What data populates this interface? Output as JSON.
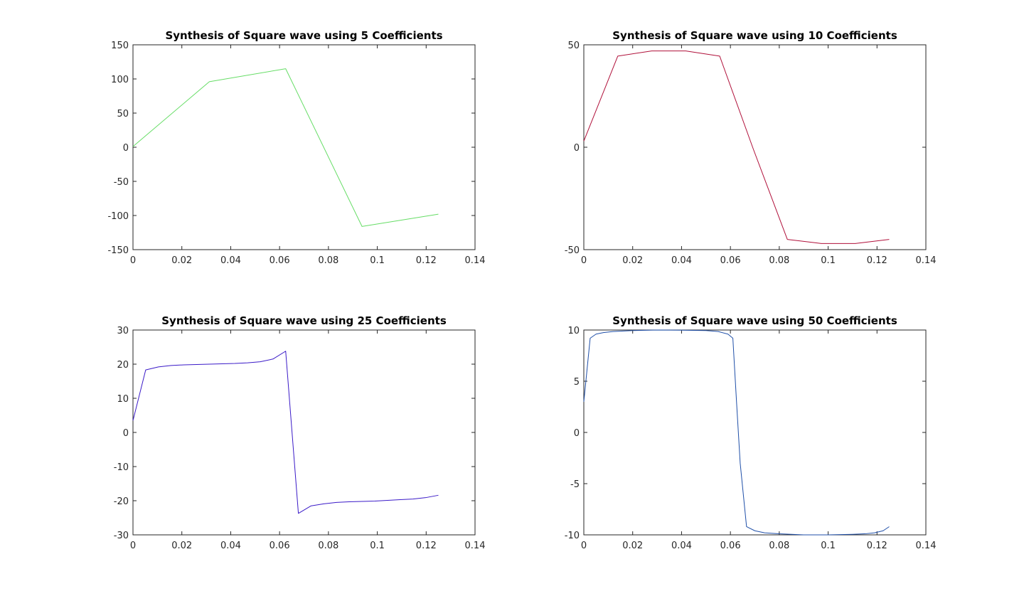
{
  "chart_data": [
    {
      "type": "line",
      "title": "Synthesis of Square wave using 5 Coefficients",
      "xlabel": "",
      "ylabel": "",
      "xlim": [
        0,
        0.14
      ],
      "ylim": [
        -150,
        150
      ],
      "xticks": [
        0,
        0.02,
        0.04,
        0.06,
        0.08,
        0.1,
        0.12,
        0.14
      ],
      "xtick_labels": [
        "0",
        "0.02",
        "0.04",
        "0.06",
        "0.08",
        "0.1",
        "0.12",
        "0.14"
      ],
      "yticks": [
        -150,
        -100,
        -50,
        0,
        50,
        100,
        150
      ],
      "ytick_labels": [
        "-150",
        "-100",
        "-50",
        "0",
        "50",
        "100",
        "150"
      ],
      "grid": false,
      "series": [
        {
          "color": "#66dd66",
          "x": [
            0,
            0.03125,
            0.0625,
            0.09375,
            0.125
          ],
          "y": [
            1,
            96,
            115,
            -116,
            -98
          ]
        }
      ]
    },
    {
      "type": "line",
      "title": "Synthesis of Square wave using 10 Coefficients",
      "xlabel": "",
      "ylabel": "",
      "xlim": [
        0,
        0.14
      ],
      "ylim": [
        -50,
        50
      ],
      "xticks": [
        0,
        0.02,
        0.04,
        0.06,
        0.08,
        0.1,
        0.12,
        0.14
      ],
      "xtick_labels": [
        "0",
        "0.02",
        "0.04",
        "0.06",
        "0.08",
        "0.1",
        "0.12",
        "0.14"
      ],
      "yticks": [
        -50,
        0,
        50
      ],
      "ytick_labels": [
        "-50",
        "0",
        "50"
      ],
      "grid": false,
      "series": [
        {
          "color": "#b0103a",
          "x": [
            0,
            0.0139,
            0.0278,
            0.0417,
            0.0556,
            0.0694,
            0.0833,
            0.0972,
            0.1111,
            0.125
          ],
          "y": [
            3,
            44.5,
            47,
            47,
            44.5,
            -1,
            -45,
            -47,
            -47,
            -45
          ]
        }
      ]
    },
    {
      "type": "line",
      "title": "Synthesis of Square wave using 25 Coefficients",
      "xlabel": "",
      "ylabel": "",
      "xlim": [
        0,
        0.14
      ],
      "ylim": [
        -30,
        30
      ],
      "xticks": [
        0,
        0.02,
        0.04,
        0.06,
        0.08,
        0.1,
        0.12,
        0.14
      ],
      "xtick_labels": [
        "0",
        "0.02",
        "0.04",
        "0.06",
        "0.08",
        "0.1",
        "0.12",
        "0.14"
      ],
      "yticks": [
        -30,
        -20,
        -10,
        0,
        10,
        20,
        30
      ],
      "ytick_labels": [
        "-30",
        "-20",
        "-10",
        "0",
        "10",
        "20",
        "30"
      ],
      "grid": false,
      "series": [
        {
          "color": "#3a1ac8",
          "x": [
            0,
            0.0052,
            0.0104,
            0.0156,
            0.0208,
            0.026,
            0.0313,
            0.0365,
            0.0417,
            0.0469,
            0.0521,
            0.0573,
            0.0625,
            0.0677,
            0.0729,
            0.0781,
            0.0833,
            0.0885,
            0.0938,
            0.099,
            0.1042,
            0.1094,
            0.1146,
            0.1198,
            0.125
          ],
          "y": [
            3.5,
            18.3,
            19.2,
            19.6,
            19.8,
            19.9,
            20.0,
            20.1,
            20.2,
            20.4,
            20.7,
            21.5,
            23.8,
            -23.7,
            -21.5,
            -20.9,
            -20.5,
            -20.3,
            -20.2,
            -20.1,
            -19.9,
            -19.7,
            -19.5,
            -19.1,
            -18.4
          ]
        }
      ]
    },
    {
      "type": "line",
      "title": "Synthesis of Square wave using 50 Coefficients",
      "xlabel": "",
      "ylabel": "",
      "xlim": [
        0,
        0.14
      ],
      "ylim": [
        -10,
        10
      ],
      "xticks": [
        0,
        0.02,
        0.04,
        0.06,
        0.08,
        0.1,
        0.12,
        0.14
      ],
      "xtick_labels": [
        "0",
        "0.02",
        "0.04",
        "0.06",
        "0.08",
        "0.1",
        "0.12",
        "0.14"
      ],
      "yticks": [
        -10,
        -5,
        0,
        5,
        10
      ],
      "ytick_labels": [
        "-10",
        "-5",
        "0",
        "5",
        "10"
      ],
      "grid": false,
      "series": [
        {
          "color": "#1f4fa8",
          "x": [
            0,
            0.0026,
            0.005,
            0.008,
            0.012,
            0.02,
            0.03,
            0.04,
            0.05,
            0.055,
            0.059,
            0.061,
            0.0625,
            0.064,
            0.0666,
            0.07,
            0.074,
            0.08,
            0.09,
            0.1,
            0.11,
            0.115,
            0.119,
            0.1225,
            0.125
          ],
          "y": [
            3,
            9.2,
            9.6,
            9.75,
            9.85,
            9.95,
            10,
            9.98,
            9.95,
            9.85,
            9.6,
            9.2,
            3,
            -3,
            -9.2,
            -9.6,
            -9.8,
            -9.9,
            -10,
            -10,
            -9.95,
            -9.9,
            -9.8,
            -9.6,
            -9.2
          ]
        }
      ]
    }
  ]
}
